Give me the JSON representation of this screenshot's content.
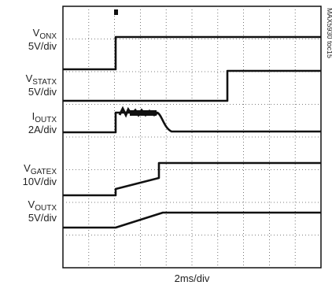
{
  "traces": [
    {
      "symbol": "V",
      "sub": "ONX",
      "scale": "5V/div"
    },
    {
      "symbol": "V",
      "sub": "STATX",
      "scale": "5V/div"
    },
    {
      "symbol": "I",
      "sub": "OUTX",
      "scale": "2A/div"
    },
    {
      "symbol": "V",
      "sub": "GATEX",
      "scale": "10V/div"
    },
    {
      "symbol": "V",
      "sub": "OUTX",
      "scale": "5V/div"
    }
  ],
  "x_label": "2ms/div",
  "figure_id": "MAX5930 toc15"
}
